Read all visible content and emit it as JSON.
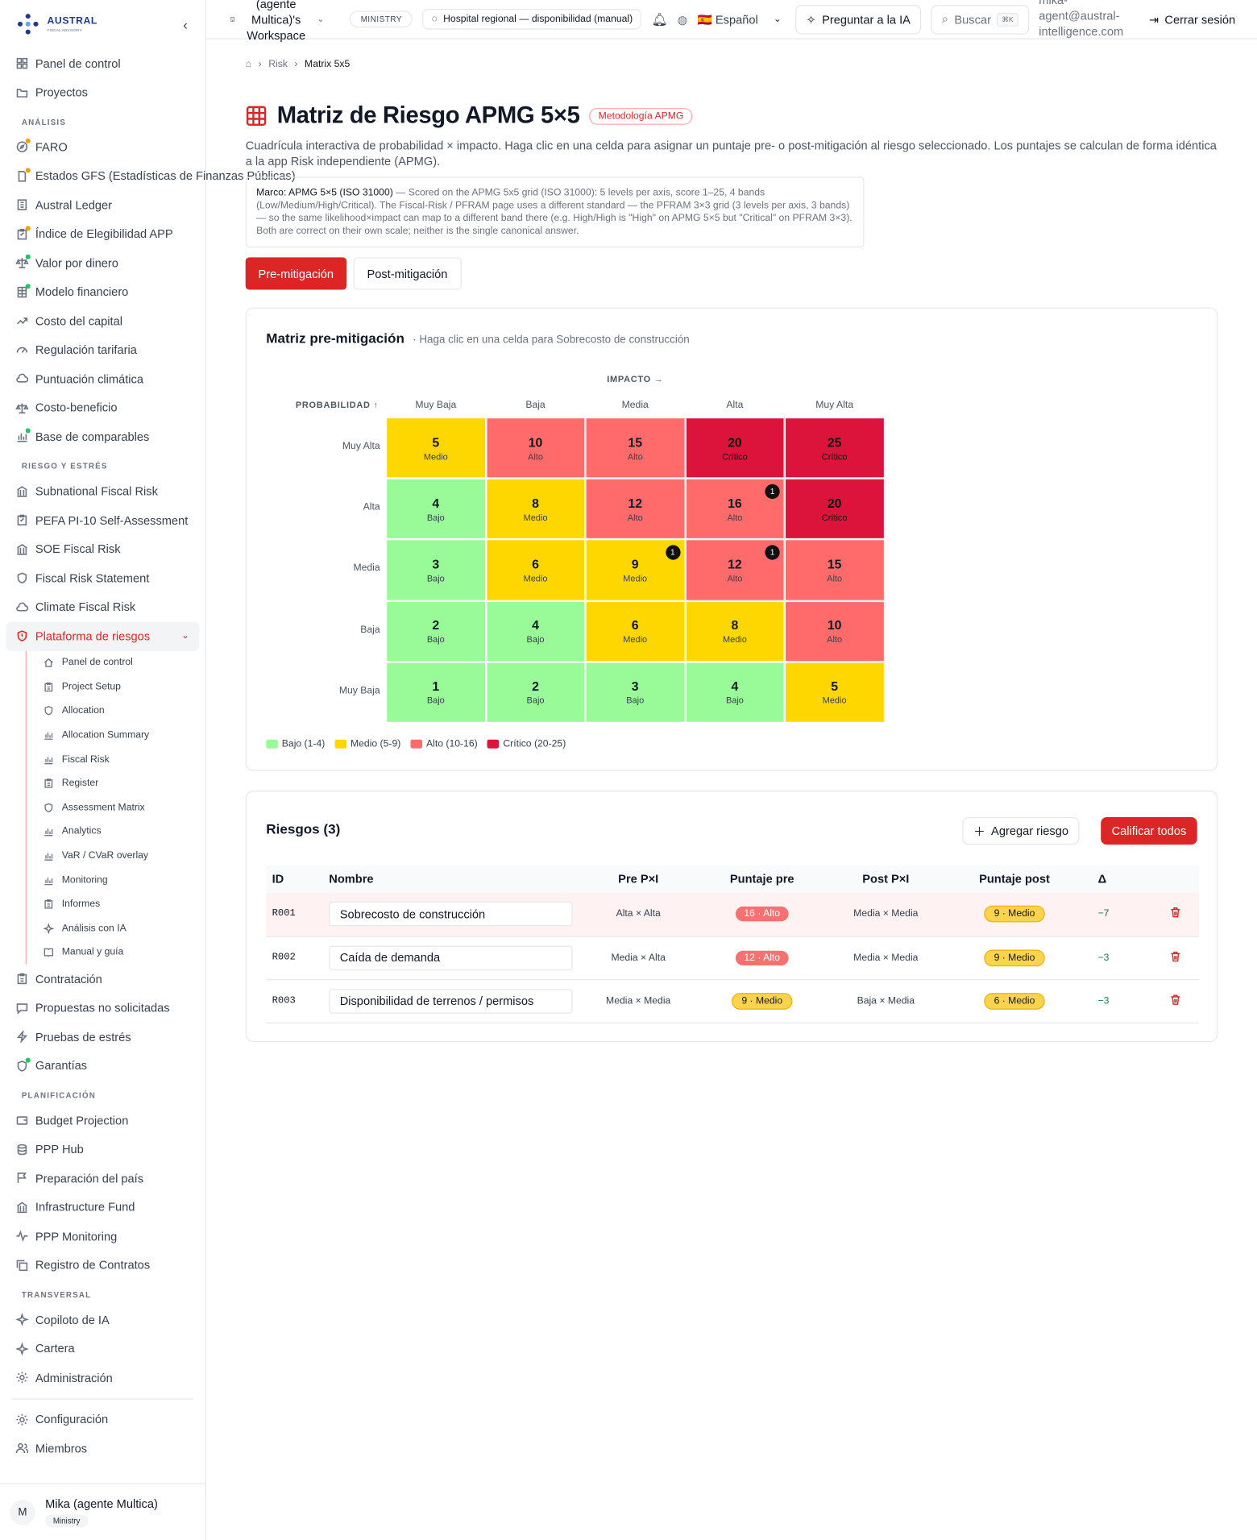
{
  "brand": {
    "name": "AUSTRAL",
    "sub": "FISCAL ADVISORY"
  },
  "sidebar": {
    "top": [
      {
        "label": "Panel de control",
        "icon": "dashboard-icon"
      },
      {
        "label": "Proyectos",
        "icon": "folder-icon"
      }
    ],
    "sections": [
      {
        "title": "ANÁLISIS",
        "items": [
          {
            "label": "FARO",
            "icon": "compass-icon",
            "dot": "o"
          },
          {
            "label": "Estados GFS (Estadísticas de Finanzas Públicas)",
            "icon": "file-icon",
            "dot": "o"
          },
          {
            "label": "Austral Ledger",
            "icon": "ledger-icon"
          },
          {
            "label": "Índice de Elegibilidad APP",
            "icon": "checklist-icon",
            "dot": "o"
          },
          {
            "label": "Valor por dinero",
            "icon": "scale-icon",
            "dot": "g"
          },
          {
            "label": "Modelo financiero",
            "icon": "sheet-icon",
            "dot": "g"
          },
          {
            "label": "Costo del capital",
            "icon": "trend-icon"
          },
          {
            "label": "Regulación tarifaria",
            "icon": "gauge-icon"
          },
          {
            "label": "Puntuación climática",
            "icon": "cloud-icon"
          },
          {
            "label": "Costo-beneficio",
            "icon": "scale-icon"
          },
          {
            "label": "Base de comparables",
            "icon": "bars-icon",
            "dot": "g"
          }
        ]
      },
      {
        "title": "RIESGO Y ESTRÉS",
        "items": [
          {
            "label": "Subnational Fiscal Risk",
            "icon": "bank-icon"
          },
          {
            "label": "PEFA PI-10 Self-Assessment",
            "icon": "checklist-icon"
          },
          {
            "label": "SOE Fiscal Risk",
            "icon": "bank-icon"
          },
          {
            "label": "Fiscal Risk Statement",
            "icon": "shield-icon"
          },
          {
            "label": "Climate Fiscal Risk",
            "icon": "cloud-icon"
          }
        ]
      }
    ],
    "active": {
      "label": "Plataforma de riesgos",
      "icon": "shield-alert-icon"
    },
    "subitems": [
      {
        "label": "Panel de control",
        "icon": "home-icon"
      },
      {
        "label": "Project Setup",
        "icon": "clipboard-icon"
      },
      {
        "label": "Allocation",
        "icon": "shield-icon"
      },
      {
        "label": "Allocation Summary",
        "icon": "bars-icon"
      },
      {
        "label": "Fiscal Risk",
        "icon": "bars-icon"
      },
      {
        "label": "Register",
        "icon": "clipboard-icon"
      },
      {
        "label": "Assessment Matrix",
        "icon": "shield-icon"
      },
      {
        "label": "Analytics",
        "icon": "bars-icon"
      },
      {
        "label": "VaR / CVaR overlay",
        "icon": "bars-icon"
      },
      {
        "label": "Monitoring",
        "icon": "bars-icon"
      },
      {
        "label": "Informes",
        "icon": "clipboard-icon"
      },
      {
        "label": "Análisis con IA",
        "icon": "sparkle-icon"
      },
      {
        "label": "Manual y guía",
        "icon": "book-icon"
      }
    ],
    "after": [
      {
        "label": "Contratación",
        "icon": "clipboard-icon"
      },
      {
        "label": "Propuestas no solicitadas",
        "icon": "chat-icon"
      },
      {
        "label": "Pruebas de estrés",
        "icon": "bolt-icon"
      },
      {
        "label": "Garantías",
        "icon": "shield-icon",
        "dot": "g"
      }
    ],
    "sections2": [
      {
        "title": "PLANIFICACIÓN",
        "items": [
          {
            "label": "Budget Projection",
            "icon": "wallet-icon"
          },
          {
            "label": "PPP Hub",
            "icon": "database-icon"
          },
          {
            "label": "Preparación del país",
            "icon": "flag-icon"
          },
          {
            "label": "Infrastructure Fund",
            "icon": "bank-icon"
          },
          {
            "label": "PPP Monitoring",
            "icon": "pulse-icon"
          },
          {
            "label": "Registro de Contratos",
            "icon": "copy-icon"
          }
        ]
      },
      {
        "title": "TRANSVERSAL",
        "items": [
          {
            "label": "Copiloto de IA",
            "icon": "sparkle-icon"
          },
          {
            "label": "Cartera",
            "icon": "sparkle-icon"
          },
          {
            "label": "Administración",
            "icon": "gear-icon"
          }
        ]
      }
    ],
    "bottom": [
      {
        "label": "Configuración",
        "icon": "gear-icon"
      },
      {
        "label": "Miembros",
        "icon": "users-icon"
      }
    ],
    "user": {
      "initial": "M",
      "name": "Mika (agente Multica)",
      "role": "Ministry"
    }
  },
  "header": {
    "workspace": "(agente Multica)'s Workspace",
    "chip": "MINISTRY",
    "project": "Hospital regional — disponibilidad (manual)",
    "language": "🇪🇸 Español",
    "ask_ai": "Preguntar a la IA",
    "search": "Buscar",
    "search_kbd": "⌘K",
    "email": "mika-agent@austral-intelligence.com",
    "logout": "Cerrar sesión"
  },
  "breadcrumb": {
    "risk": "Risk",
    "current": "Matrix 5x5"
  },
  "page": {
    "title": "Matriz de Riesgo APMG 5×5",
    "badge": "Metodología APMG",
    "description": "Cuadrícula interactiva de probabilidad × impacto. Haga clic en una celda para asignar un puntaje pre- o post-mitigación al riesgo seleccionado. Los puntajes se calculan de forma idéntica a la app Risk independiente (APMG).",
    "note_bold": "Marco: APMG 5×5 (ISO 31000)",
    "note_rest": " — Scored on the APMG 5x5 grid (ISO 31000): 5 levels per axis, score 1–25, 4 bands (Low/Medium/High/Critical). The Fiscal-Risk / PFRAM page uses a different standard — the PFRAM 3×3 grid (3 levels per axis, 3 bands) — so the same likelihood×impact can map to a different band there (e.g. High/High is \"High\" on APMG 5×5 but \"Critical\" on PFRAM 3×3). Both are correct on their own scale; neither is the single canonical answer.",
    "pre_btn": "Pre-mitigación",
    "post_btn": "Post-mitigación"
  },
  "matrix": {
    "title": "Matriz pre-mitigación",
    "subtitle": "· Haga clic en una celda para Sobrecosto de construcción",
    "impact_label": "IMPACTO →",
    "prob_label": "PROBABILIDAD ↑",
    "impact_levels": [
      "Muy Baja",
      "Baja",
      "Media",
      "Alta",
      "Muy Alta"
    ],
    "prob_levels": [
      "Muy Alta",
      "Alta",
      "Media",
      "Baja",
      "Muy Baja"
    ],
    "rows": [
      [
        {
          "s": "5",
          "b": "Medio",
          "k": "medio"
        },
        {
          "s": "10",
          "b": "Alto",
          "k": "alto"
        },
        {
          "s": "15",
          "b": "Alto",
          "k": "alto"
        },
        {
          "s": "20",
          "b": "Crítico",
          "k": "critico"
        },
        {
          "s": "25",
          "b": "Crítico",
          "k": "critico"
        }
      ],
      [
        {
          "s": "4",
          "b": "Bajo",
          "k": "bajo"
        },
        {
          "s": "8",
          "b": "Medio",
          "k": "medio"
        },
        {
          "s": "12",
          "b": "Alto",
          "k": "alto"
        },
        {
          "s": "16",
          "b": "Alto",
          "k": "alto",
          "c": "1"
        },
        {
          "s": "20",
          "b": "Crítico",
          "k": "critico"
        }
      ],
      [
        {
          "s": "3",
          "b": "Bajo",
          "k": "bajo"
        },
        {
          "s": "6",
          "b": "Medio",
          "k": "medio"
        },
        {
          "s": "9",
          "b": "Medio",
          "k": "medio",
          "c": "1"
        },
        {
          "s": "12",
          "b": "Alto",
          "k": "alto",
          "c": "1"
        },
        {
          "s": "15",
          "b": "Alto",
          "k": "alto"
        }
      ],
      [
        {
          "s": "2",
          "b": "Bajo",
          "k": "bajo"
        },
        {
          "s": "4",
          "b": "Bajo",
          "k": "bajo"
        },
        {
          "s": "6",
          "b": "Medio",
          "k": "medio"
        },
        {
          "s": "8",
          "b": "Medio",
          "k": "medio"
        },
        {
          "s": "10",
          "b": "Alto",
          "k": "alto"
        }
      ],
      [
        {
          "s": "1",
          "b": "Bajo",
          "k": "bajo"
        },
        {
          "s": "2",
          "b": "Bajo",
          "k": "bajo"
        },
        {
          "s": "3",
          "b": "Bajo",
          "k": "bajo"
        },
        {
          "s": "4",
          "b": "Bajo",
          "k": "bajo"
        },
        {
          "s": "5",
          "b": "Medio",
          "k": "medio"
        }
      ]
    ],
    "colors": {
      "bajo": "#98fb98",
      "medio": "#ffd700",
      "alto": "#ff6b6b",
      "critico": "#dc143c"
    },
    "legend": [
      {
        "label": "Bajo (1-4)",
        "k": "bajo"
      },
      {
        "label": "Medio (5-9)",
        "k": "medio"
      },
      {
        "label": "Alto (10-16)",
        "k": "alto"
      },
      {
        "label": "Crítico (20-25)",
        "k": "critico"
      }
    ]
  },
  "risks": {
    "title": "Riesgos (3)",
    "add_btn": "Agregar riesgo",
    "score_all_btn": "Calificar todos",
    "columns": [
      "ID",
      "Nombre",
      "Pre P×I",
      "Puntaje pre",
      "Post P×I",
      "Puntaje post",
      "Δ"
    ],
    "rows": [
      {
        "id": "R001",
        "name": "Sobrecosto de construcción",
        "pre": "Alta × Alta",
        "pre_score": "16 · Alto",
        "pre_k": "alto",
        "post": "Media × Media",
        "post_score": "9 · Medio",
        "post_k": "medio",
        "delta": "−7"
      },
      {
        "id": "R002",
        "name": "Caída de demanda",
        "pre": "Media × Alta",
        "pre_score": "12 · Alto",
        "pre_k": "alto",
        "post": "Media × Media",
        "post_score": "9 · Medio",
        "post_k": "medio",
        "delta": "−3"
      },
      {
        "id": "R003",
        "name": "Disponibilidad de terrenos / permisos",
        "pre": "Media × Media",
        "pre_score": "9 · Medio",
        "pre_k": "medio",
        "post": "Baja × Media",
        "post_score": "6 · Medio",
        "post_k": "medio",
        "delta": "−3"
      }
    ]
  }
}
